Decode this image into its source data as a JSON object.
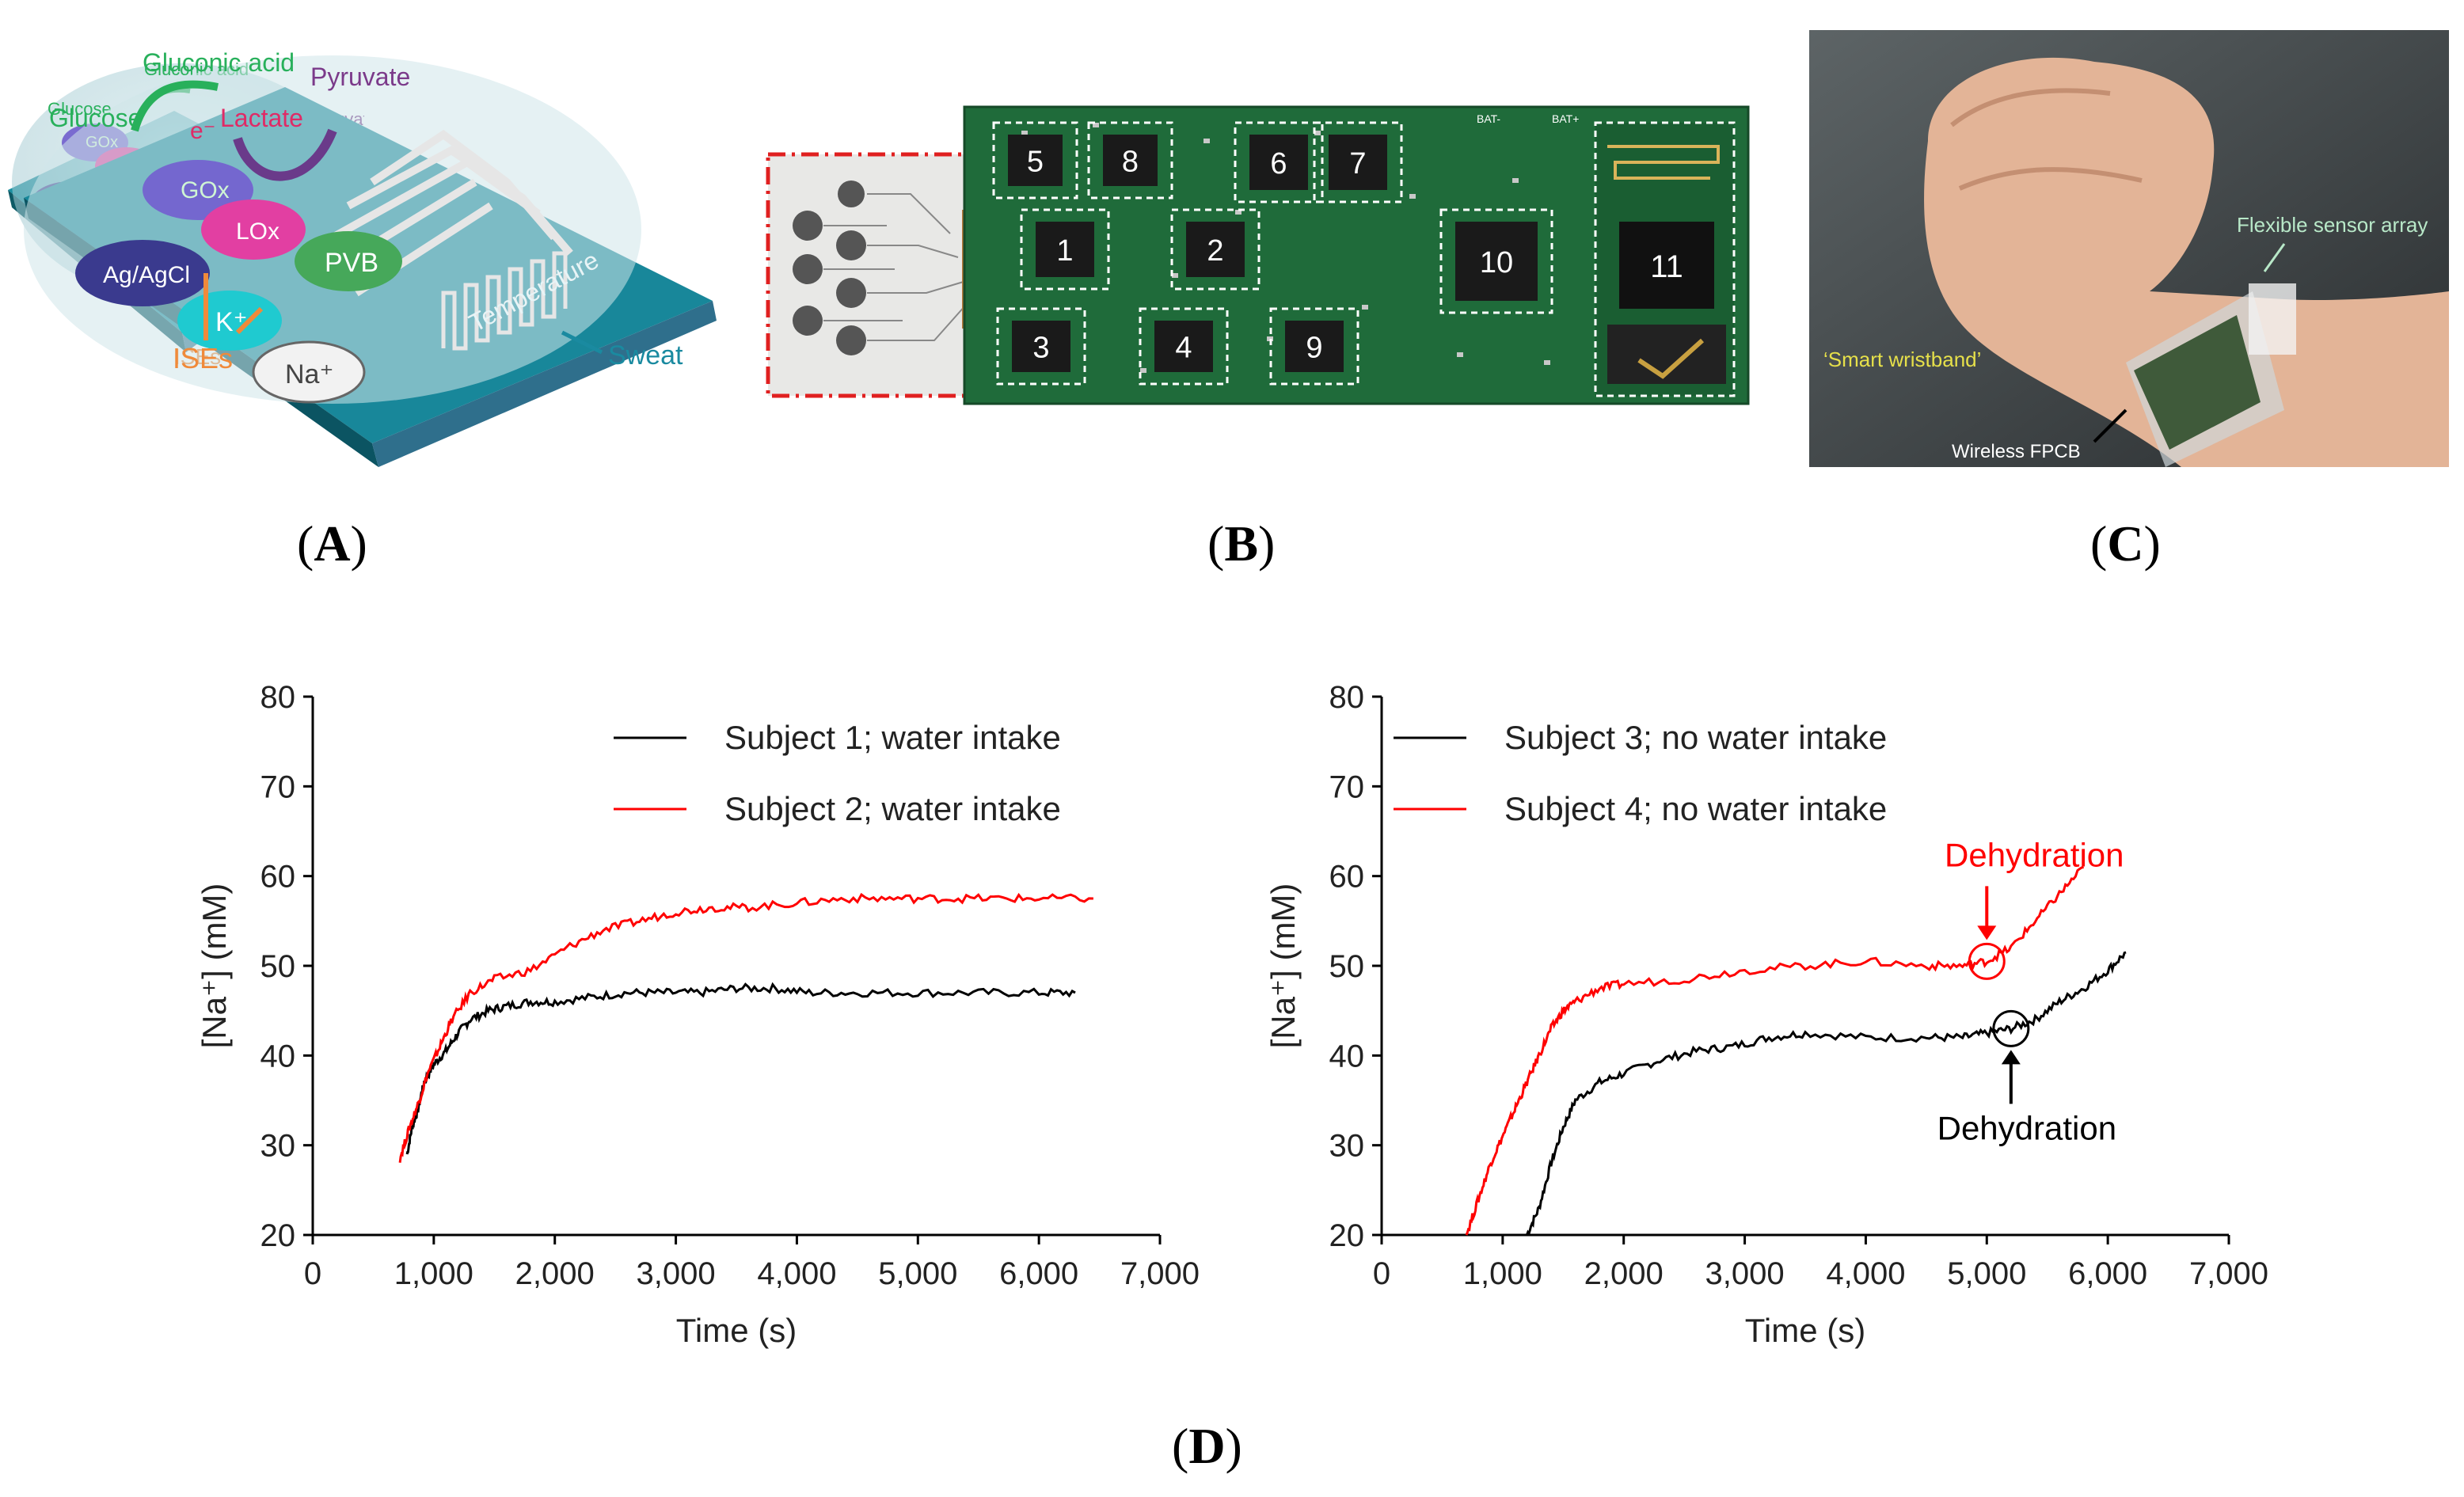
{
  "panels": {
    "a": {
      "label": "A",
      "labels": {
        "glucose": "Glucose",
        "gluconic_acid": "Gluconic acid",
        "lactate": "Lactate",
        "electron": "e⁻",
        "pyruvate": "Pyruvate",
        "gox": "GOx",
        "lox": "LOx",
        "agagcl": "Ag/AgCl",
        "pvb": "PVB",
        "k": "K⁺",
        "na": "Na⁺",
        "ises": "ISEs",
        "temperature": "Temperature",
        "sweat": "Sweat"
      }
    },
    "b": {
      "label": "B",
      "chips": [
        "1",
        "2",
        "3",
        "4",
        "5",
        "6",
        "7",
        "8",
        "9",
        "10",
        "11"
      ],
      "bat1": "BAT-",
      "bat2": "BAT+"
    },
    "c": {
      "label": "C",
      "flexible": "Flexible sensor array",
      "smart": "‘Smart wristband’",
      "fpcb": "Wireless FPCB"
    },
    "d": {
      "label": "D"
    }
  },
  "chart_data": [
    {
      "type": "line",
      "title": "",
      "xlabel": "Time (s)",
      "ylabel": "[Na⁺] (mM)",
      "xlim": [
        0,
        7000
      ],
      "ylim": [
        20,
        80
      ],
      "xticks": [
        "0",
        "1,000",
        "2,000",
        "3,000",
        "4,000",
        "5,000",
        "6,000",
        "7,000"
      ],
      "yticks": [
        "20",
        "30",
        "40",
        "50",
        "60",
        "70",
        "80"
      ],
      "series": [
        {
          "name": "Subject 1; water intake",
          "color": "#000000",
          "x": [
            780,
            820,
            870,
            920,
            1000,
            1100,
            1200,
            1300,
            1450,
            1600,
            1800,
            2000,
            2300,
            2600,
            2900,
            3200,
            3500,
            3800,
            4100,
            4500,
            5000,
            5500,
            6000,
            6300
          ],
          "y": [
            29,
            32,
            34,
            37,
            39,
            40.5,
            42.5,
            44,
            45,
            45.5,
            46,
            46,
            46.5,
            47,
            47,
            47,
            47.5,
            47.5,
            47,
            47,
            47,
            47,
            47,
            47
          ]
        },
        {
          "name": "Subject 2; water intake",
          "color": "#ff0000",
          "x": [
            720,
            800,
            880,
            950,
            1050,
            1150,
            1300,
            1500,
            1800,
            2100,
            2400,
            2700,
            3000,
            3300,
            3600,
            4000,
            4400,
            4800,
            5200,
            5600,
            6000,
            6450
          ],
          "y": [
            28.5,
            32,
            35,
            38,
            41,
            44,
            47,
            48.5,
            49.5,
            52,
            54,
            55,
            56,
            56.5,
            56.5,
            57,
            57.5,
            57.5,
            57.5,
            57.5,
            57.5,
            57.5
          ]
        }
      ]
    },
    {
      "type": "line",
      "title": "",
      "xlabel": "Time (s)",
      "ylabel": "[Na⁺] (mM)",
      "xlim": [
        0,
        7000
      ],
      "ylim": [
        20,
        80
      ],
      "xticks": [
        "0",
        "1,000",
        "2,000",
        "3,000",
        "4,000",
        "5,000",
        "6,000",
        "7,000"
      ],
      "yticks": [
        "20",
        "30",
        "40",
        "50",
        "60",
        "70",
        "80"
      ],
      "series": [
        {
          "name": "Subject 3; no water intake",
          "color": "#000000",
          "x": [
            1200,
            1300,
            1400,
            1500,
            1600,
            1800,
            2000,
            2300,
            2600,
            2900,
            3200,
            3500,
            4000,
            4500,
            4800,
            5000,
            5200,
            5400,
            5600,
            5800,
            6000,
            6150
          ],
          "y": [
            20,
            23,
            28,
            32,
            35,
            37,
            38,
            39.5,
            40.5,
            41,
            42,
            42.5,
            42,
            42,
            42,
            42.5,
            43,
            44,
            46,
            47.5,
            49.5,
            51.5
          ]
        },
        {
          "name": "Subject 4; no water intake",
          "color": "#ff0000",
          "x": [
            700,
            800,
            900,
            1000,
            1100,
            1200,
            1300,
            1400,
            1500,
            1600,
            1800,
            2000,
            2500,
            3000,
            3500,
            4000,
            4500,
            4800,
            5000,
            5200,
            5400,
            5600,
            5800
          ],
          "y": [
            20,
            24,
            28,
            31,
            34,
            37,
            40,
            43,
            45,
            46,
            47.5,
            48,
            48.5,
            49.5,
            50,
            50.5,
            50,
            50,
            50.5,
            52,
            55,
            58,
            61
          ]
        }
      ],
      "annotations": [
        {
          "text": "Dehydration",
          "color": "#ff0000",
          "x": 5000,
          "y": 50.5
        },
        {
          "text": "Dehydration",
          "color": "#000000",
          "x": 5200,
          "y": 43
        }
      ]
    }
  ]
}
